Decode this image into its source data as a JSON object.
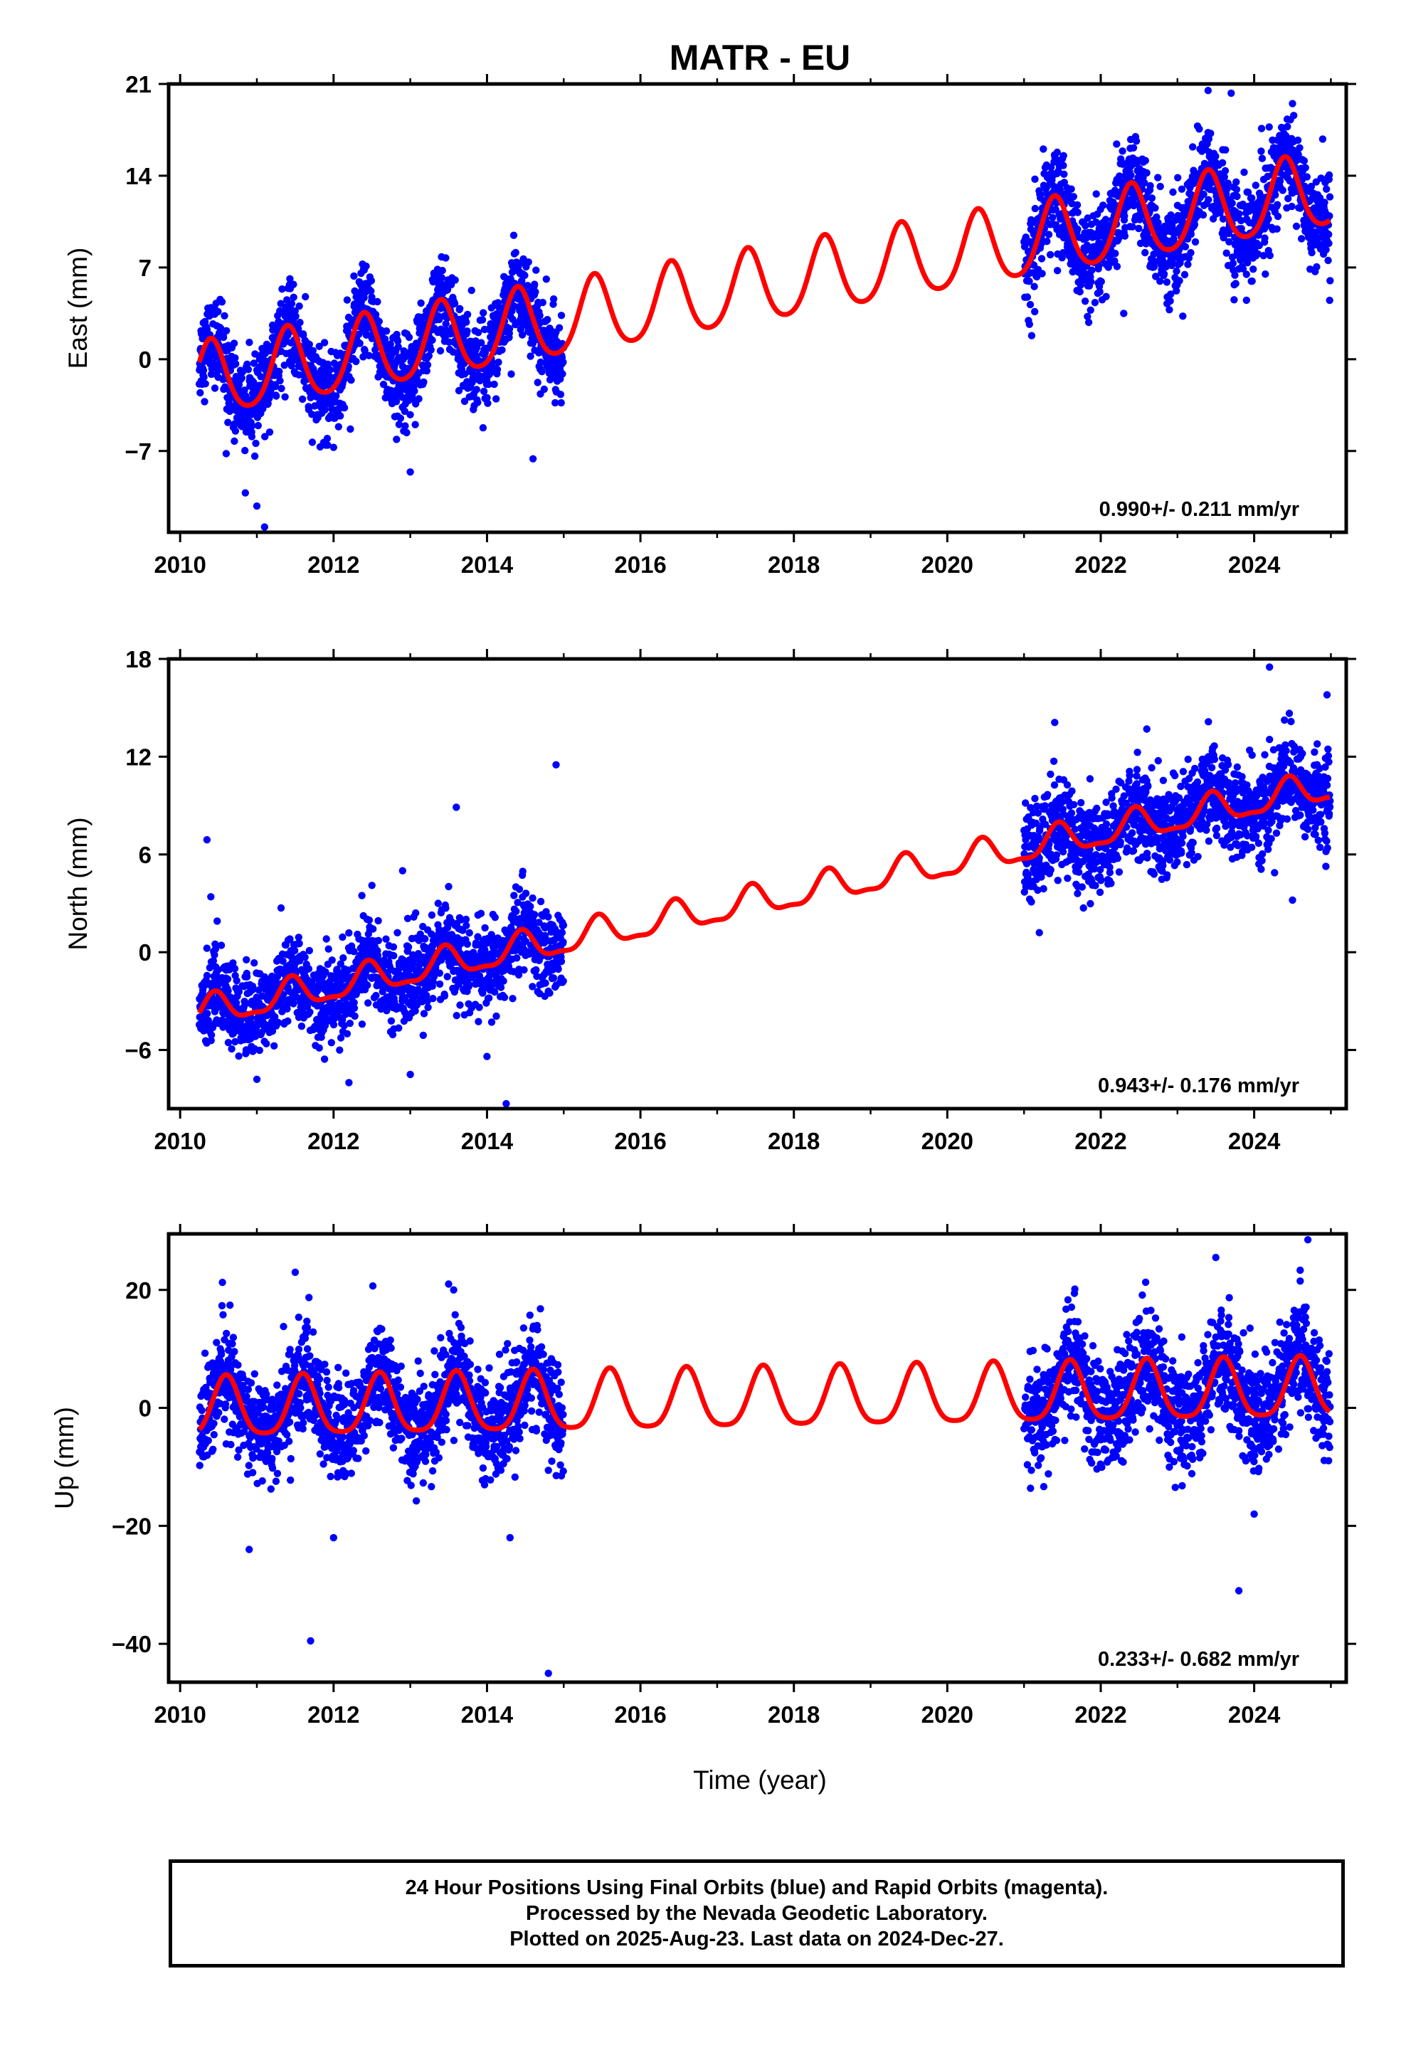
{
  "chart_data": {
    "title": "MATR - EU",
    "type": "scatter",
    "xlabel": "Time (year)",
    "xlim": [
      2009.85,
      2025.2
    ],
    "xticks": [
      2010,
      2012,
      2014,
      2016,
      2018,
      2020,
      2022,
      2024
    ],
    "colors": {
      "points": "#0000ff",
      "model": "#ff0000"
    },
    "panels": [
      {
        "name": "east",
        "ylabel": "East (mm)",
        "ylim": [
          -13.2,
          21
        ],
        "yticks": [
          21,
          14,
          7,
          0,
          -7
        ],
        "rate": "0.990+/- 0.211 mm/yr",
        "model": {
          "y2010": -2.0,
          "slope": 0.99,
          "annual_amp": 2.8,
          "peak_phase": 0.4,
          "semi_amp": 0.4,
          "step_year": 2021.0,
          "step_size": 0.0
        },
        "segments": [
          {
            "start": 2010.25,
            "end": 2015.0,
            "sigma": 1.6
          },
          {
            "start": 2021.0,
            "end": 2024.99,
            "sigma": 1.8
          }
        ],
        "outliers": [
          [
            2010.6,
            -7.2
          ],
          [
            2010.85,
            -10.2
          ],
          [
            2011.0,
            -11.2
          ],
          [
            2011.1,
            -12.8
          ],
          [
            2013.0,
            -8.6
          ],
          [
            2014.6,
            -7.6
          ],
          [
            2021.1,
            1.8
          ],
          [
            2022.3,
            3.5
          ],
          [
            2023.0,
            6.0
          ],
          [
            2023.9,
            4.5
          ],
          [
            2023.4,
            20.5
          ],
          [
            2023.7,
            20.3
          ],
          [
            2024.5,
            19.5
          ]
        ]
      },
      {
        "name": "north",
        "ylabel": "North (mm)",
        "ylim": [
          -9.6,
          18
        ],
        "yticks": [
          18,
          12,
          6,
          0,
          -6
        ],
        "rate": "0.943+/- 0.176 mm/yr",
        "model": {
          "y2010": -4.0,
          "slope": 0.943,
          "annual_amp": 0.9,
          "peak_phase": 0.45,
          "semi_amp": 0.3,
          "step_year": 2021.0,
          "step_size": 0.0
        },
        "segments": [
          {
            "start": 2010.25,
            "end": 2015.0,
            "sigma": 1.3
          },
          {
            "start": 2021.0,
            "end": 2024.99,
            "sigma": 1.4
          }
        ],
        "outliers": [
          [
            2010.35,
            6.9
          ],
          [
            2010.4,
            3.4
          ],
          [
            2011.0,
            -7.8
          ],
          [
            2012.2,
            -8.0
          ],
          [
            2012.5,
            4.1
          ],
          [
            2012.9,
            5.0
          ],
          [
            2013.0,
            -7.5
          ],
          [
            2013.6,
            8.9
          ],
          [
            2014.0,
            -6.4
          ],
          [
            2014.25,
            -9.3
          ],
          [
            2014.9,
            11.5
          ],
          [
            2021.4,
            14.1
          ],
          [
            2021.2,
            1.2
          ],
          [
            2022.6,
            13.7
          ],
          [
            2024.2,
            17.5
          ],
          [
            2024.5,
            3.2
          ],
          [
            2024.95,
            15.8
          ]
        ]
      },
      {
        "name": "up",
        "ylabel": "Up (mm)",
        "ylim": [
          -46.5,
          29.5
        ],
        "yticks": [
          20,
          0,
          -20,
          -40
        ],
        "rate": "0.233+/- 0.682 mm/yr",
        "model": {
          "y2010": -0.5,
          "slope": 0.233,
          "annual_amp": 5.0,
          "peak_phase": 0.6,
          "semi_amp": 1.0,
          "step_year": 2021.0,
          "step_size": 0.0
        },
        "segments": [
          {
            "start": 2010.25,
            "end": 2015.0,
            "sigma": 4.2
          },
          {
            "start": 2021.0,
            "end": 2024.99,
            "sigma": 4.6
          }
        ],
        "outliers": [
          [
            2010.9,
            -24
          ],
          [
            2011.5,
            23
          ],
          [
            2011.7,
            -39.5
          ],
          [
            2012.0,
            -22
          ],
          [
            2013.5,
            21
          ],
          [
            2014.8,
            -45
          ],
          [
            2014.3,
            -22
          ],
          [
            2023.5,
            25.5
          ],
          [
            2023.8,
            -31
          ],
          [
            2024.6,
            21.5
          ],
          [
            2024.7,
            28.5
          ],
          [
            2024.0,
            -18
          ]
        ]
      }
    ]
  },
  "footer": {
    "line1": "24 Hour Positions Using Final Orbits (blue) and Rapid Orbits (magenta).",
    "line2": "Processed by the Nevada Geodetic Laboratory.",
    "line3": "Plotted on 2025-Aug-23. Last data on 2024-Dec-27."
  }
}
